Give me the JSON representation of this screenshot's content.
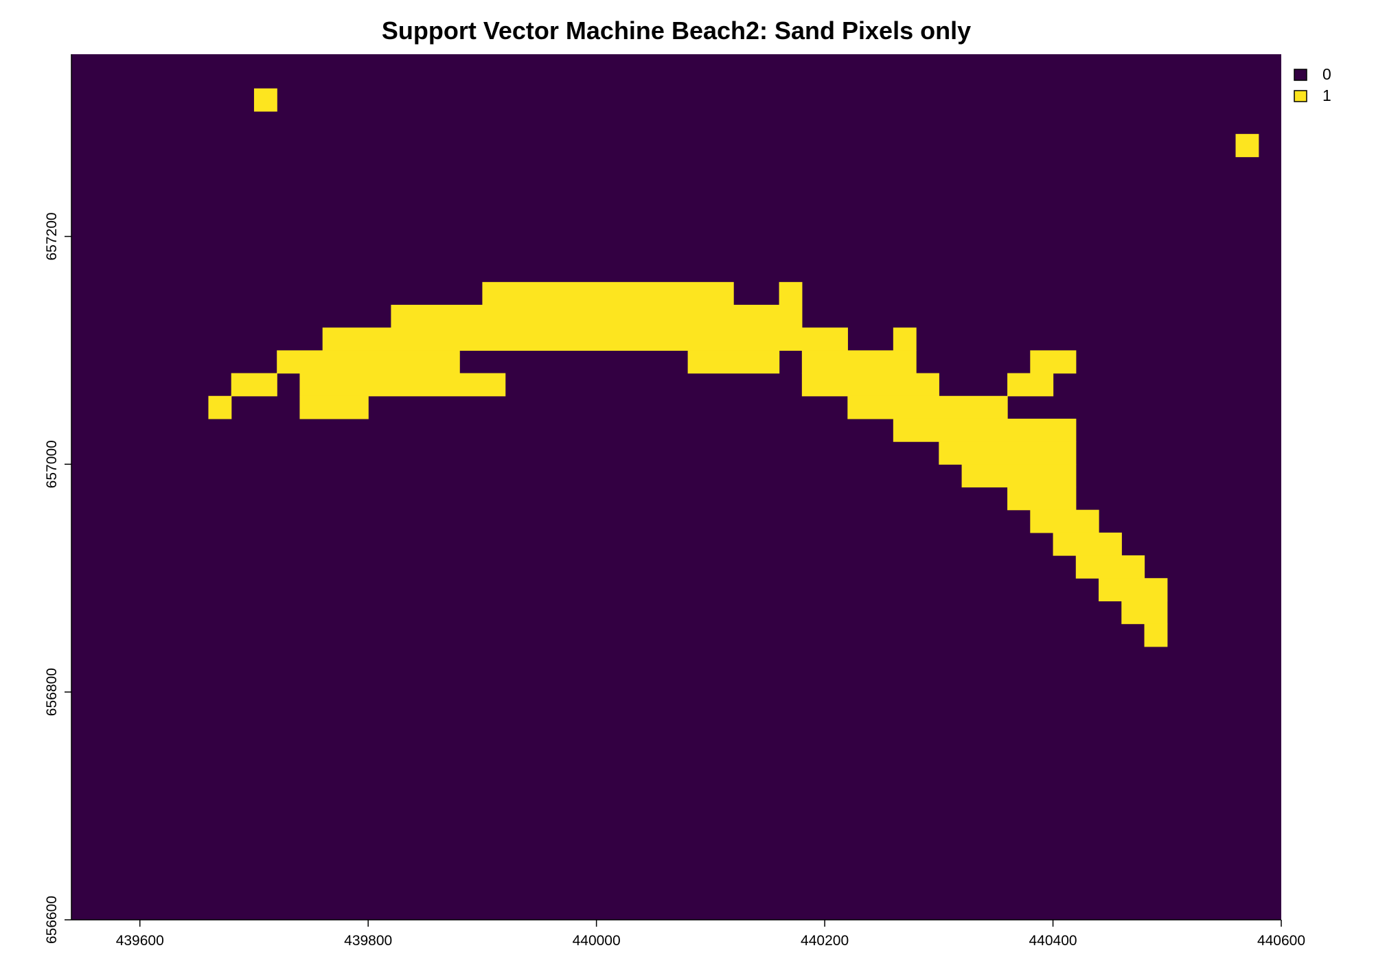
{
  "chart_data": {
    "type": "heatmap",
    "title": "Support Vector Machine Beach2: Sand Pixels only",
    "xlabel": "",
    "ylabel": "",
    "xlim": [
      439540,
      440600
    ],
    "ylim": [
      656600,
      657360
    ],
    "cell_size": 20,
    "x_ticks": [
      439600,
      439800,
      440000,
      440200,
      440400,
      440600
    ],
    "x_tick_labels": [
      "439600",
      "439800",
      "440000",
      "440200",
      "440400",
      "440600"
    ],
    "y_ticks": [
      656600,
      656800,
      657000,
      657200
    ],
    "y_tick_labels": [
      "656600",
      "656800",
      "657000",
      "657200"
    ],
    "legend": {
      "position": "top-right",
      "entries": [
        {
          "label": "0",
          "color": "#330042"
        },
        {
          "label": "1",
          "color": "#fde51f"
        }
      ]
    },
    "background_value": 0,
    "background_color": "#330042",
    "value_1_color": "#fde51f",
    "sand_rows": [
      {
        "y_min": 657310,
        "x_ranges": [
          [
            439700,
            439720
          ]
        ]
      },
      {
        "y_min": 657270,
        "x_ranges": [
          [
            440560,
            440580
          ]
        ]
      },
      {
        "y_min": 657140,
        "x_ranges": [
          [
            439900,
            440120
          ],
          [
            440160,
            440180
          ]
        ]
      },
      {
        "y_min": 657120,
        "x_ranges": [
          [
            439820,
            440180
          ]
        ]
      },
      {
        "y_min": 657100,
        "x_ranges": [
          [
            439760,
            440220
          ],
          [
            440260,
            440280
          ]
        ]
      },
      {
        "y_min": 657080,
        "x_ranges": [
          [
            439720,
            439880
          ],
          [
            440080,
            440160
          ],
          [
            440180,
            440280
          ],
          [
            440380,
            440420
          ]
        ]
      },
      {
        "y_min": 657060,
        "x_ranges": [
          [
            439680,
            439720
          ],
          [
            439740,
            439920
          ],
          [
            440180,
            440300
          ],
          [
            440360,
            440400
          ]
        ]
      },
      {
        "y_min": 657040,
        "x_ranges": [
          [
            439660,
            439680
          ],
          [
            439740,
            439800
          ],
          [
            440220,
            440360
          ]
        ]
      },
      {
        "y_min": 657020,
        "x_ranges": [
          [
            440260,
            440420
          ]
        ]
      },
      {
        "y_min": 657000,
        "x_ranges": [
          [
            440300,
            440420
          ]
        ]
      },
      {
        "y_min": 656980,
        "x_ranges": [
          [
            440320,
            440420
          ]
        ]
      },
      {
        "y_min": 656960,
        "x_ranges": [
          [
            440360,
            440420
          ]
        ]
      },
      {
        "y_min": 656940,
        "x_ranges": [
          [
            440380,
            440440
          ]
        ]
      },
      {
        "y_min": 656920,
        "x_ranges": [
          [
            440400,
            440460
          ]
        ]
      },
      {
        "y_min": 656900,
        "x_ranges": [
          [
            440420,
            440480
          ]
        ]
      },
      {
        "y_min": 656880,
        "x_ranges": [
          [
            440440,
            440500
          ]
        ]
      },
      {
        "y_min": 656860,
        "x_ranges": [
          [
            440460,
            440500
          ]
        ]
      },
      {
        "y_min": 656840,
        "x_ranges": [
          [
            440480,
            440500
          ]
        ]
      }
    ]
  }
}
